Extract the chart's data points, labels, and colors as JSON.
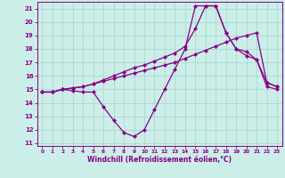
{
  "xlabel": "Windchill (Refroidissement éolien,°C)",
  "background_color": "#cceee8",
  "grid_color": "#aad8d0",
  "line_color": "#880088",
  "xlim_min": -0.5,
  "xlim_max": 23.5,
  "ylim_min": 10.8,
  "ylim_max": 21.5,
  "xticks": [
    0,
    1,
    2,
    3,
    4,
    5,
    6,
    7,
    8,
    9,
    10,
    11,
    12,
    13,
    14,
    15,
    16,
    17,
    18,
    19,
    20,
    21,
    22,
    23
  ],
  "yticks": [
    11,
    12,
    13,
    14,
    15,
    16,
    17,
    18,
    19,
    20,
    21
  ],
  "s1_x": [
    0,
    1,
    2,
    3,
    4,
    5,
    6,
    7,
    8,
    9,
    10,
    11,
    12,
    13,
    14,
    15,
    16,
    17,
    18,
    19,
    20,
    21,
    22,
    23
  ],
  "s1_y": [
    14.8,
    14.8,
    15.0,
    14.9,
    14.8,
    14.8,
    13.7,
    12.7,
    11.8,
    11.5,
    12.0,
    13.5,
    15.0,
    16.5,
    18.0,
    21.2,
    21.2,
    21.2,
    19.2,
    18.0,
    17.5,
    17.2,
    15.2,
    15.0
  ],
  "s2_x": [
    0,
    1,
    2,
    3,
    4,
    5,
    6,
    7,
    8,
    9,
    10,
    11,
    12,
    13,
    14,
    15,
    16,
    17,
    18,
    19,
    20,
    21,
    22,
    23
  ],
  "s2_y": [
    14.8,
    14.8,
    15.0,
    15.1,
    15.2,
    15.4,
    15.6,
    15.8,
    16.0,
    16.2,
    16.4,
    16.6,
    16.8,
    17.0,
    17.3,
    17.6,
    17.9,
    18.2,
    18.5,
    18.8,
    19.0,
    19.2,
    15.5,
    15.2
  ],
  "s3_x": [
    0,
    1,
    2,
    3,
    4,
    5,
    6,
    7,
    8,
    9,
    10,
    11,
    12,
    13,
    14,
    15,
    16,
    17,
    18,
    19,
    20,
    21,
    22,
    23
  ],
  "s3_y": [
    14.8,
    14.8,
    15.0,
    15.1,
    15.2,
    15.4,
    15.7,
    16.0,
    16.3,
    16.6,
    16.8,
    17.1,
    17.4,
    17.7,
    18.2,
    19.5,
    21.2,
    21.2,
    19.2,
    18.0,
    17.8,
    17.2,
    15.5,
    15.2
  ]
}
